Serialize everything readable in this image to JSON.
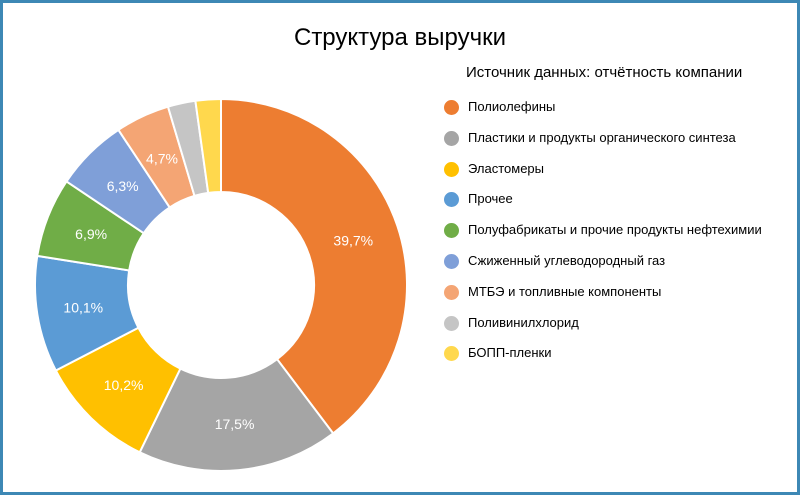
{
  "chart_data": {
    "type": "pie",
    "title": "Структура выручки",
    "subtitle": "Источник данных: отчётность компании",
    "legend_position": "right",
    "slices": [
      {
        "label": "Полиолефины",
        "value": 39.7,
        "display": "39,7%",
        "color": "#ED7D31"
      },
      {
        "label": "Пластики и продукты органического синтеза",
        "value": 17.5,
        "display": "17,5%",
        "color": "#A5A5A5"
      },
      {
        "label": "Эластомеры",
        "value": 10.2,
        "display": "10,2%",
        "color": "#FFC000"
      },
      {
        "label": "Прочее",
        "value": 10.1,
        "display": "10,1%",
        "color": "#5B9BD5"
      },
      {
        "label": "Полуфабрикаты и прочие продукты нефтехимии",
        "value": 6.9,
        "display": "6,9%",
        "color": "#70AD47"
      },
      {
        "label": "Сжиженный углеводородный газ",
        "value": 6.3,
        "display": "6,3%",
        "color": "#7F9FD8"
      },
      {
        "label": "МТБЭ и топливные компоненты",
        "value": 4.7,
        "display": "4,7%",
        "color": "#F4A574"
      },
      {
        "label": "Поливинилхлорид",
        "value": 2.4,
        "display": "",
        "color": "#C5C5C5"
      },
      {
        "label": "БОПП-пленки",
        "value": 2.2,
        "display": "",
        "color": "#FFD84D"
      }
    ]
  },
  "colors": {
    "frame_border": "#3d88b5",
    "data_label": "#ffffff"
  }
}
